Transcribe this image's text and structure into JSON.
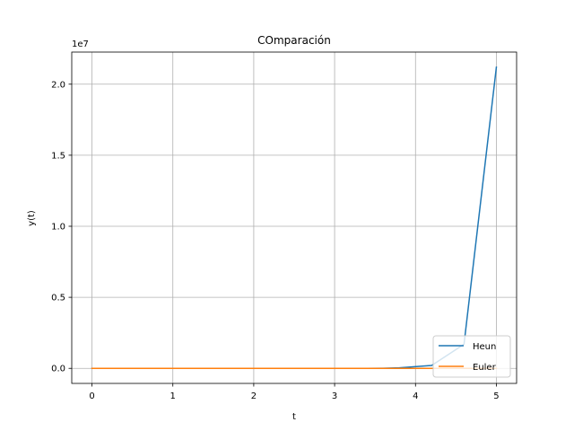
{
  "chart_data": {
    "type": "line",
    "title": "COmparación",
    "xlabel": "t",
    "ylabel": "y(t)",
    "y_offset_label": "1e7",
    "xlim": [
      -0.25,
      5.25
    ],
    "ylim": [
      -1060000,
      22260000
    ],
    "x_ticks": [
      0,
      1,
      2,
      3,
      4,
      5
    ],
    "x_tick_labels": [
      "0",
      "1",
      "2",
      "3",
      "4",
      "5"
    ],
    "y_ticks": [
      0,
      5000000,
      10000000,
      15000000,
      20000000
    ],
    "y_tick_labels": [
      "0.0",
      "0.5",
      "1.0",
      "1.5",
      "2.0"
    ],
    "grid": true,
    "legend_position": "lower-right",
    "series": [
      {
        "name": "Heun",
        "color": "#1f77b4",
        "x": [
          0,
          0.2,
          0.4,
          0.6,
          0.8,
          1.0,
          1.2,
          1.4,
          1.6,
          1.8,
          2.0,
          2.2,
          2.4,
          2.6,
          2.8,
          3.0,
          3.2,
          3.4,
          3.6,
          3.8,
          4.2,
          4.6,
          5.0
        ],
        "y": [
          0,
          0,
          0,
          0,
          0,
          0,
          0,
          0,
          0,
          0,
          0,
          0,
          0,
          0,
          0,
          0,
          0,
          0,
          10000,
          40000,
          200000,
          1700000,
          21200000
        ]
      },
      {
        "name": "Euler",
        "color": "#ff7f0e",
        "x": [
          0,
          0.2,
          0.4,
          0.6,
          0.8,
          1.0,
          1.2,
          1.4,
          1.6,
          1.8,
          2.0,
          2.2,
          2.4,
          2.6,
          2.8,
          3.0,
          3.2,
          3.4,
          3.6,
          3.8,
          4.0,
          4.2,
          4.4,
          4.6,
          4.8,
          5.0
        ],
        "y": [
          0,
          0,
          0,
          0,
          0,
          0,
          0,
          0,
          0,
          0,
          0,
          0,
          0,
          0,
          0,
          0,
          0,
          0,
          0,
          0,
          0,
          0,
          0,
          0,
          0,
          0
        ]
      }
    ]
  }
}
